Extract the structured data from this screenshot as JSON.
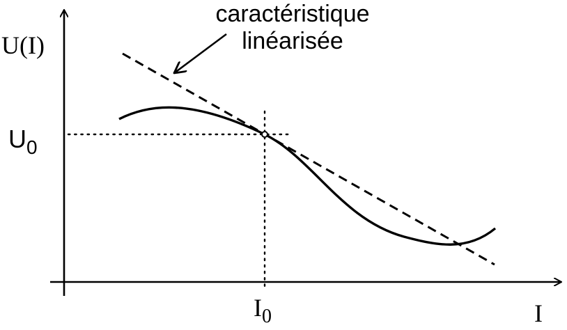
{
  "y_axis_label": "U(I)",
  "x_axis_label": "I",
  "operating_point": {
    "current_label_base": "I",
    "current_label_sub": "0",
    "voltage_label_base": "U",
    "voltage_label_sub": "0"
  },
  "annotation": {
    "line1": "caractéristique",
    "line2": "linéarisée"
  },
  "colors": {
    "ink": "#000000",
    "background": "#ffffff"
  }
}
